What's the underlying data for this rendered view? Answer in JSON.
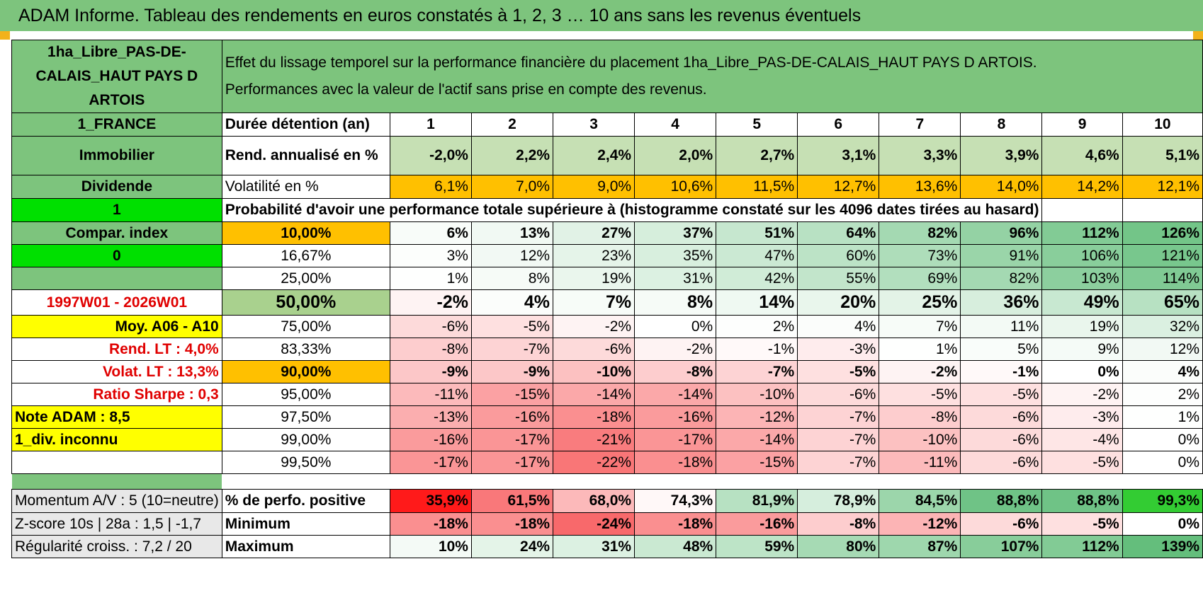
{
  "title": "ADAM Informe. Tableau des rendements en euros constatés à 1, 2, 3 … 10 ans sans les revenus éventuels",
  "colors": {
    "header_green": "#7dc47d",
    "orange": "#ffc000",
    "yellow": "#ffff00",
    "bright_green": "#00e000",
    "red_text": "#e00000"
  },
  "product": "1ha_Libre_PAS-DE-CALAIS_HAUT PAYS D ARTOIS",
  "header": {
    "line1": "Effet du lissage temporel sur la performance financière du placement 1ha_Libre_PAS-DE-CALAIS_HAUT PAYS D ARTOIS.",
    "line2": "Performances avec la valeur de l'actif sans prise en compte des revenus."
  },
  "left": {
    "country": "1_FRANCE",
    "asset_class": "Immobilier",
    "dividend": "Dividende",
    "flag1": "1",
    "compar_index": "Compar. index",
    "flag0": "0",
    "period": "1997W01 - 2026W01",
    "moy": "Moy. A06 - A10",
    "rend_lt": "Rend. LT :    4,0%",
    "volat_lt": "Volat. LT :    13,3%",
    "sharpe": "Ratio Sharpe :    0,3",
    "note": "Note ADAM : 8,5",
    "div": "1_div. inconnu",
    "momentum": "Momentum A/V : 5 (10=neutre)",
    "zscore": "Z-score 10s | 28a : 1,5 | -1,7",
    "regularite": "Régularité croiss. : 7,2 / 20"
  },
  "durations_label": "Durée détention (an)",
  "durations": [
    "1",
    "2",
    "3",
    "4",
    "5",
    "6",
    "7",
    "8",
    "9",
    "10"
  ],
  "rend_label": "Rend. annualisé en %",
  "rend": [
    "-2,0%",
    "2,2%",
    "2,4%",
    "2,0%",
    "2,7%",
    "3,1%",
    "3,3%",
    "3,9%",
    "4,6%",
    "5,1%"
  ],
  "vol_label": "Volatilité en %",
  "vol": [
    "6,1%",
    "7,0%",
    "9,0%",
    "10,6%",
    "11,5%",
    "12,7%",
    "13,6%",
    "14,0%",
    "14,2%",
    "12,1%"
  ],
  "prob_title": "Probabilité d'avoir une performance totale supérieure à (histogramme constaté sur les 4096 dates tirées au hasard)",
  "prob_rows": [
    {
      "p": "10,00%",
      "v": [
        "6%",
        "13%",
        "27%",
        "37%",
        "51%",
        "64%",
        "82%",
        "96%",
        "112%",
        "126%"
      ]
    },
    {
      "p": "16,67%",
      "v": [
        "3%",
        "12%",
        "23%",
        "35%",
        "47%",
        "60%",
        "73%",
        "91%",
        "106%",
        "121%"
      ]
    },
    {
      "p": "25,00%",
      "v": [
        "1%",
        "8%",
        "19%",
        "31%",
        "42%",
        "55%",
        "69%",
        "82%",
        "103%",
        "114%"
      ]
    },
    {
      "p": "50,00%",
      "v": [
        "-2%",
        "4%",
        "7%",
        "8%",
        "14%",
        "20%",
        "25%",
        "36%",
        "49%",
        "65%"
      ]
    },
    {
      "p": "75,00%",
      "v": [
        "-6%",
        "-5%",
        "-2%",
        "0%",
        "2%",
        "4%",
        "7%",
        "11%",
        "19%",
        "32%"
      ]
    },
    {
      "p": "83,33%",
      "v": [
        "-8%",
        "-7%",
        "-6%",
        "-2%",
        "-1%",
        "-3%",
        "1%",
        "5%",
        "9%",
        "12%"
      ]
    },
    {
      "p": "90,00%",
      "v": [
        "-9%",
        "-9%",
        "-10%",
        "-8%",
        "-7%",
        "-5%",
        "-2%",
        "-1%",
        "0%",
        "4%"
      ]
    },
    {
      "p": "95,00%",
      "v": [
        "-11%",
        "-15%",
        "-14%",
        "-14%",
        "-10%",
        "-6%",
        "-5%",
        "-5%",
        "-2%",
        "2%"
      ]
    },
    {
      "p": "97,50%",
      "v": [
        "-13%",
        "-16%",
        "-18%",
        "-16%",
        "-12%",
        "-7%",
        "-8%",
        "-6%",
        "-3%",
        "1%"
      ]
    },
    {
      "p": "99,00%",
      "v": [
        "-16%",
        "-17%",
        "-21%",
        "-17%",
        "-14%",
        "-7%",
        "-10%",
        "-6%",
        "-4%",
        "0%"
      ]
    },
    {
      "p": "99,50%",
      "v": [
        "-17%",
        "-17%",
        "-22%",
        "-18%",
        "-15%",
        "-7%",
        "-11%",
        "-6%",
        "-5%",
        "0%"
      ]
    }
  ],
  "pos_label": "% de perfo. positive",
  "pos": [
    "35,9%",
    "61,5%",
    "68,0%",
    "74,3%",
    "81,9%",
    "78,9%",
    "84,5%",
    "88,8%",
    "88,8%",
    "99,3%"
  ],
  "min_label": "Minimum",
  "min": [
    "-18%",
    "-18%",
    "-24%",
    "-18%",
    "-16%",
    "-8%",
    "-12%",
    "-6%",
    "-5%",
    "0%"
  ],
  "max_label": "Maximum",
  "max": [
    "10%",
    "24%",
    "31%",
    "48%",
    "59%",
    "80%",
    "87%",
    "107%",
    "112%",
    "139%"
  ]
}
